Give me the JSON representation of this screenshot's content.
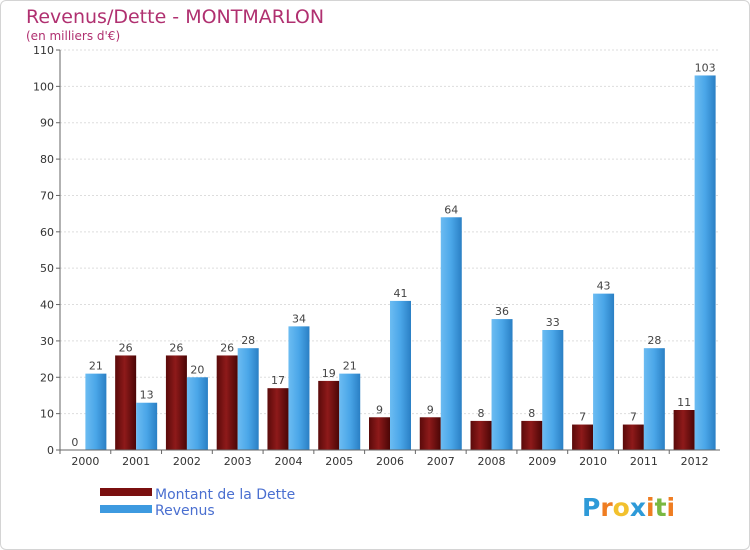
{
  "chart_data": {
    "type": "bar",
    "title": "Revenus/Dette - MONTMARLON",
    "subtitle": "(en milliers d'€)",
    "categories": [
      "2000",
      "2001",
      "2002",
      "2003",
      "2004",
      "2005",
      "2006",
      "2007",
      "2008",
      "2009",
      "2010",
      "2011",
      "2012"
    ],
    "series": [
      {
        "name": "Montant de la Dette",
        "color": "#7a0f0f",
        "values": [
          0,
          26,
          26,
          26,
          17,
          19,
          9,
          9,
          8,
          8,
          7,
          7,
          11
        ]
      },
      {
        "name": "Revenus",
        "color": "#3d9ae0",
        "values": [
          21,
          13,
          20,
          28,
          34,
          21,
          41,
          64,
          36,
          33,
          43,
          28,
          103
        ]
      }
    ],
    "ylim": [
      0,
      110
    ],
    "yticks": [
      0,
      10,
      20,
      30,
      40,
      50,
      60,
      70,
      80,
      90,
      100,
      110
    ],
    "grid": true,
    "legend": "bottom-left"
  },
  "logo": {
    "letters": [
      "P",
      "r",
      "o",
      "x",
      "i",
      "t",
      "i"
    ],
    "colors": [
      "#2e9ad8",
      "#ef7d22",
      "#f2c12e",
      "#2e9ad8",
      "#ef7d22",
      "#7ab842",
      "#ef7d22"
    ]
  }
}
